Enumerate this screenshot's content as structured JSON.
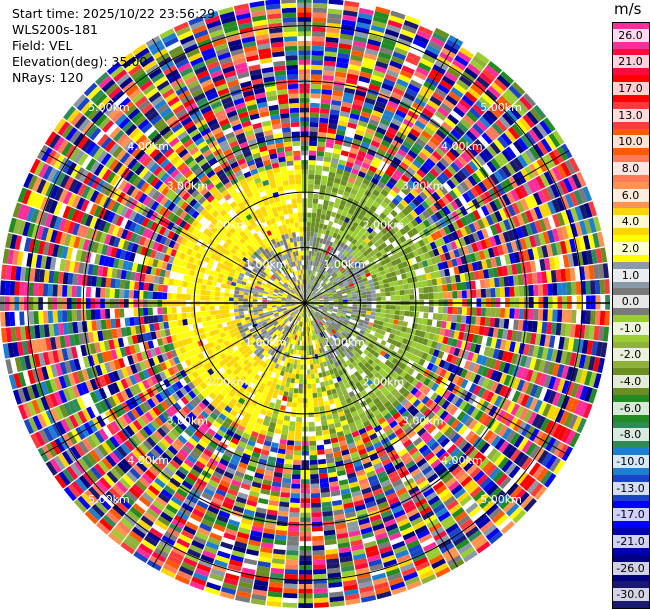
{
  "info": {
    "start_time": "Start time: 2025/10/22 23:56:29",
    "instrument": "WLS200s-181",
    "field": "Field: VEL",
    "elevation": "Elevation(deg): 35.00",
    "nrays": "NRays: 120"
  },
  "colorbar": {
    "unit": "m/s",
    "bands": [
      {
        "label": "26.0",
        "color": "#ff2d9b"
      },
      {
        "label": "21.0",
        "color": "#ff0a3c"
      },
      {
        "label": "17.0",
        "color": "#ff0000"
      },
      {
        "label": "13.0",
        "color": "#ff3a3a"
      },
      {
        "label": "10.0",
        "color": "#ff5a00"
      },
      {
        "label": "8.0",
        "color": "#ff7a5a"
      },
      {
        "label": "6.0",
        "color": "#ff9450"
      },
      {
        "label": "4.0",
        "color": "#ffd500"
      },
      {
        "label": "2.0",
        "color": "#ffff00"
      },
      {
        "label": "1.0",
        "color": "#8a9aa8"
      },
      {
        "label": "0.0",
        "color": "#7a7a7a"
      },
      {
        "label": "-1.0",
        "color": "#9acd32"
      },
      {
        "label": "-2.0",
        "color": "#8fb23a"
      },
      {
        "label": "-4.0",
        "color": "#6b8e23"
      },
      {
        "label": "-6.0",
        "color": "#228b22"
      },
      {
        "label": "-8.0",
        "color": "#2e8b57"
      },
      {
        "label": "-10.0",
        "color": "#1e7fd0"
      },
      {
        "label": "-13.0",
        "color": "#1a44c8"
      },
      {
        "label": "-17.0",
        "color": "#0000ff"
      },
      {
        "label": "-21.0",
        "color": "#0000b0"
      },
      {
        "label": "-26.0",
        "color": "#000080"
      },
      {
        "label": "-30.0",
        "color": "#191970"
      }
    ]
  },
  "chart_data": {
    "type": "heatmap",
    "projection": "polar PPI",
    "field": "VEL",
    "units": "m/s",
    "nrays": 120,
    "elevation_deg": 35.0,
    "vmin": -30.0,
    "vmax": 26.0,
    "range_rings_km": [
      1.0,
      2.0,
      3.0,
      4.0,
      5.0
    ],
    "range_ring_labels": [
      "1.00km",
      "2.00km",
      "3.00km",
      "4.00km",
      "5.00km"
    ],
    "max_range_km": 5.5,
    "clean_echo_range_km": 2.5,
    "dominant_values": {
      "north_west": "2.0 to 4.0",
      "north_east": "-1.0 to -2.0",
      "south_west": "4.0 and 0.0",
      "south_east": "-1.0 to -4.0",
      "beyond_2.5km": "noise across full scale -30.0 to 26.0"
    }
  }
}
